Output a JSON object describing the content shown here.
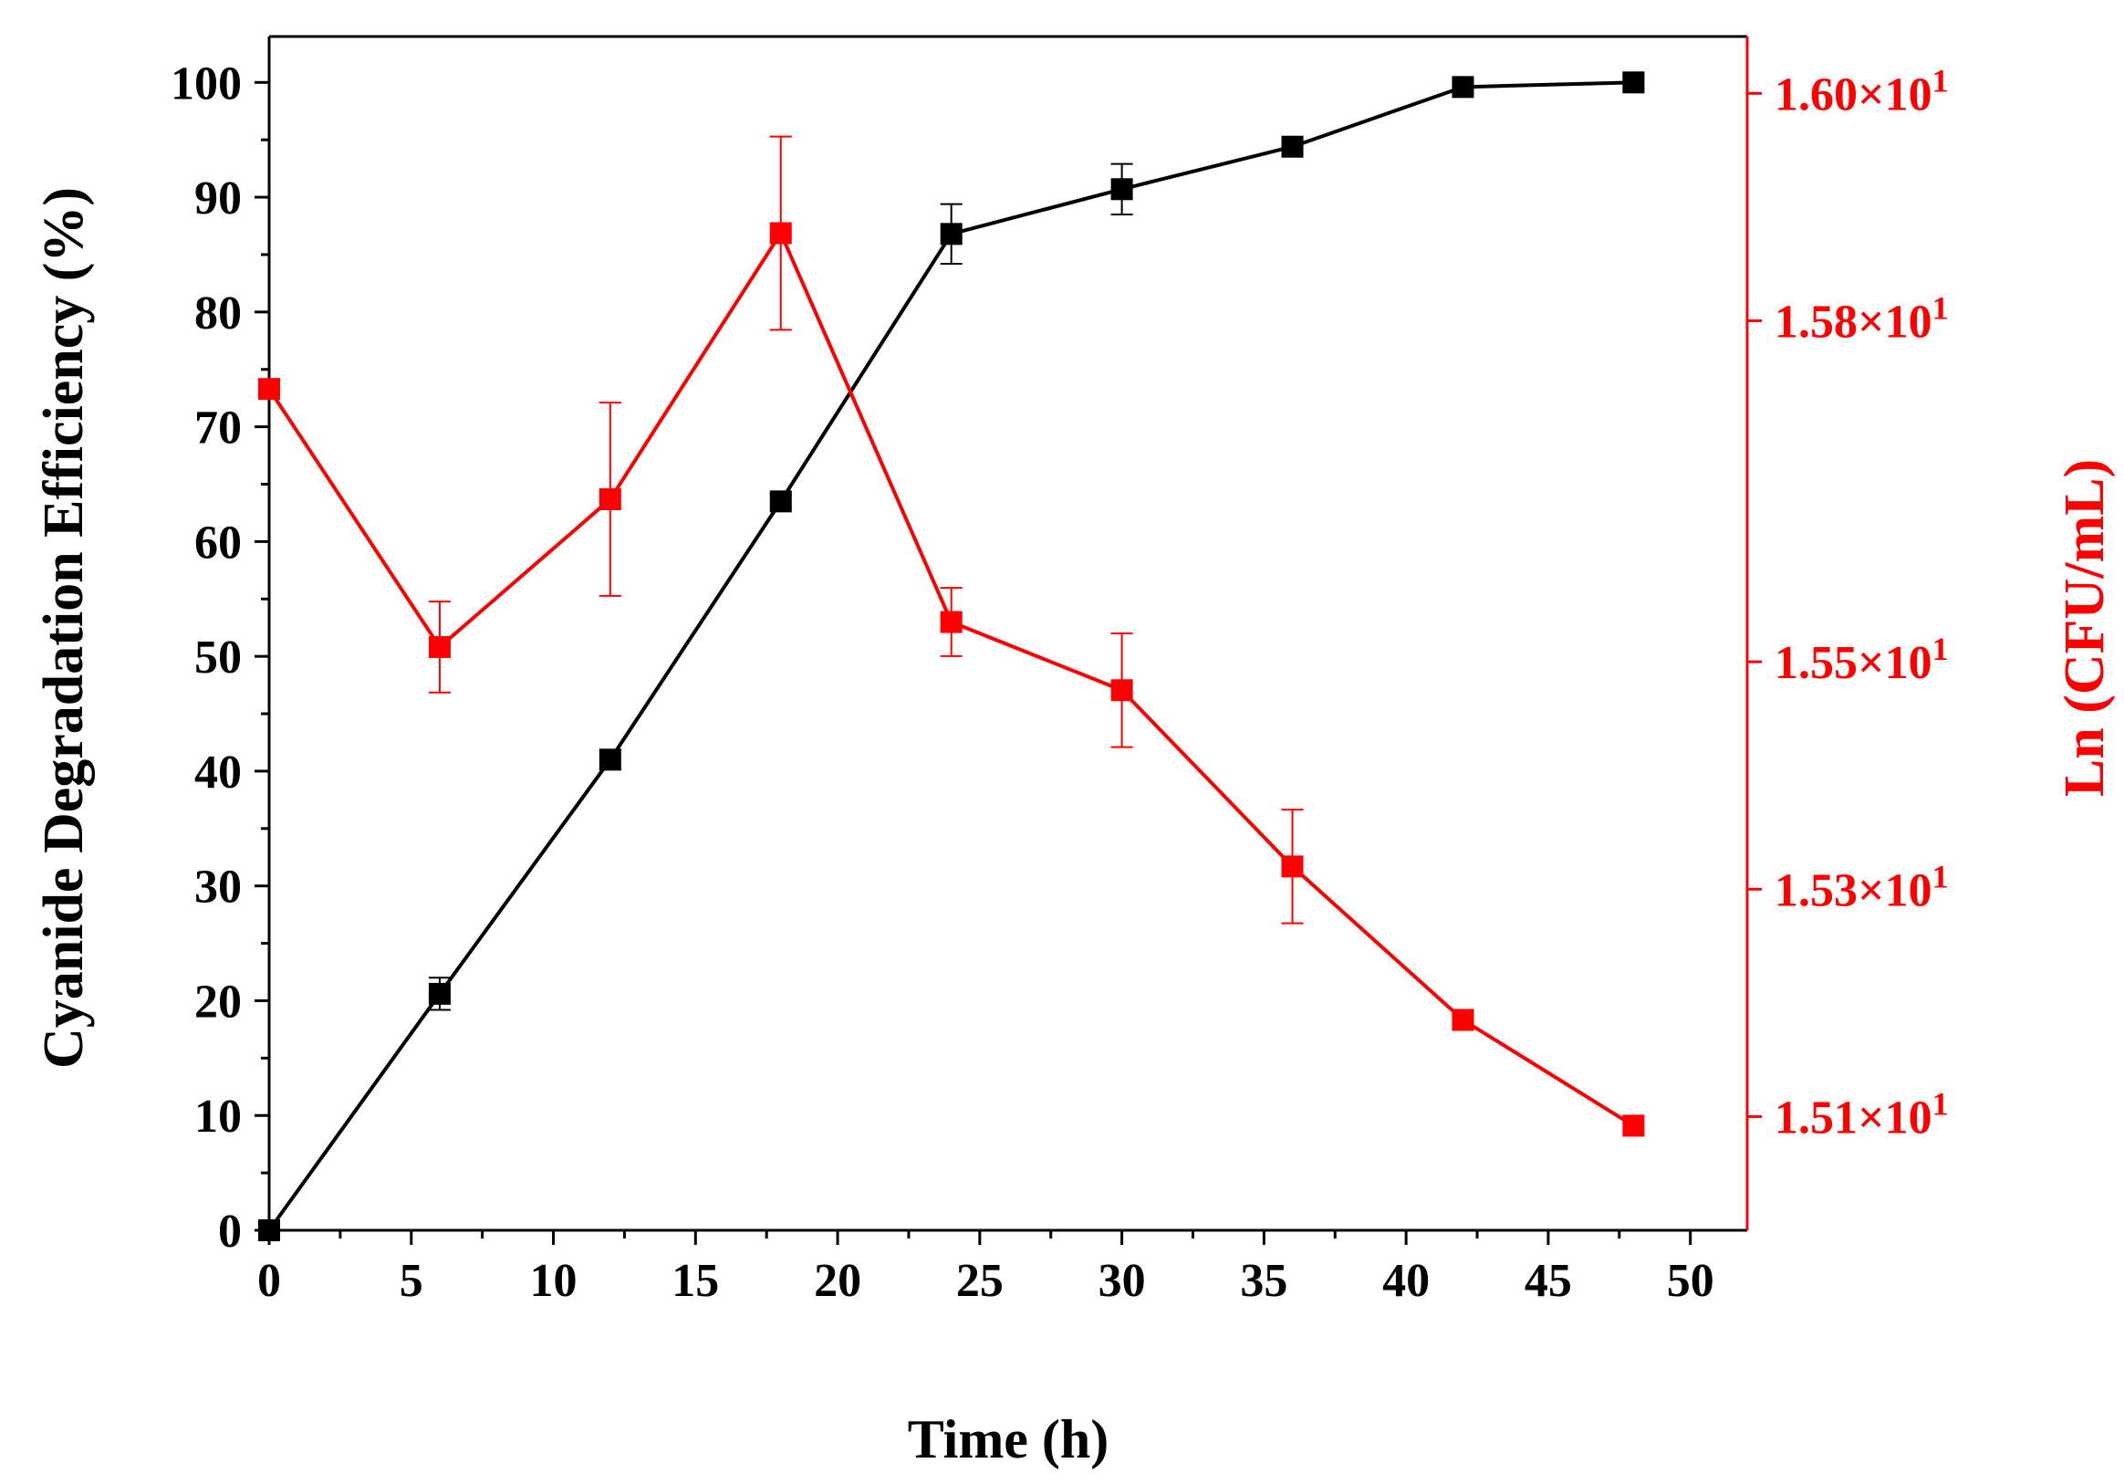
{
  "chart_data": {
    "type": "line",
    "xlabel": "Time (h)",
    "x_ticks": [
      "0",
      "5",
      "10",
      "15",
      "20",
      "25",
      "30",
      "35",
      "40",
      "45",
      "50"
    ],
    "xlim": [
      0,
      52
    ],
    "left_axis": {
      "label": "Cyanide Degradation Efficiency (%)",
      "ylim": [
        0,
        104
      ],
      "ticks": [
        "0",
        "10",
        "20",
        "30",
        "40",
        "50",
        "60",
        "70",
        "80",
        "90",
        "100"
      ],
      "color": "#000000"
    },
    "right_axis": {
      "label": "Ln (CFU/mL)",
      "ylim": [
        15.0,
        16.05
      ],
      "ticks": [
        {
          "value": 15.1,
          "mantissa": "1.51",
          "suffix": "×10",
          "exponent": "1"
        },
        {
          "value": 15.3,
          "mantissa": "1.53",
          "suffix": "×10",
          "exponent": "1"
        },
        {
          "value": 15.5,
          "mantissa": "1.55",
          "suffix": "×10",
          "exponent": "1"
        },
        {
          "value": 15.8,
          "mantissa": "1.58",
          "suffix": "×10",
          "exponent": "1"
        },
        {
          "value": 16.0,
          "mantissa": "1.60",
          "suffix": "×10",
          "exponent": "1"
        }
      ],
      "color": "#ff0000"
    },
    "series": [
      {
        "axis": "left",
        "color": "#000000",
        "x": [
          0,
          6,
          12,
          18,
          24,
          30,
          36,
          42,
          48
        ],
        "y": [
          0,
          20.6,
          41.0,
          63.5,
          86.8,
          90.7,
          94.4,
          99.6,
          100
        ],
        "err": [
          0.5,
          1.4,
          0.8,
          0.6,
          2.6,
          2.2,
          0.6,
          0.5,
          0.5
        ]
      },
      {
        "axis": "right",
        "color": "#ff0000",
        "x": [
          0,
          6,
          12,
          18,
          24,
          30,
          36,
          42,
          48
        ],
        "y": [
          15.74,
          15.513,
          15.643,
          15.877,
          15.535,
          15.475,
          15.32,
          15.185,
          15.092
        ],
        "err": [
          0.0,
          0.04,
          0.085,
          0.085,
          0.03,
          0.05,
          0.05,
          0.0,
          0.0
        ]
      }
    ],
    "grid": false,
    "legend": "none"
  }
}
